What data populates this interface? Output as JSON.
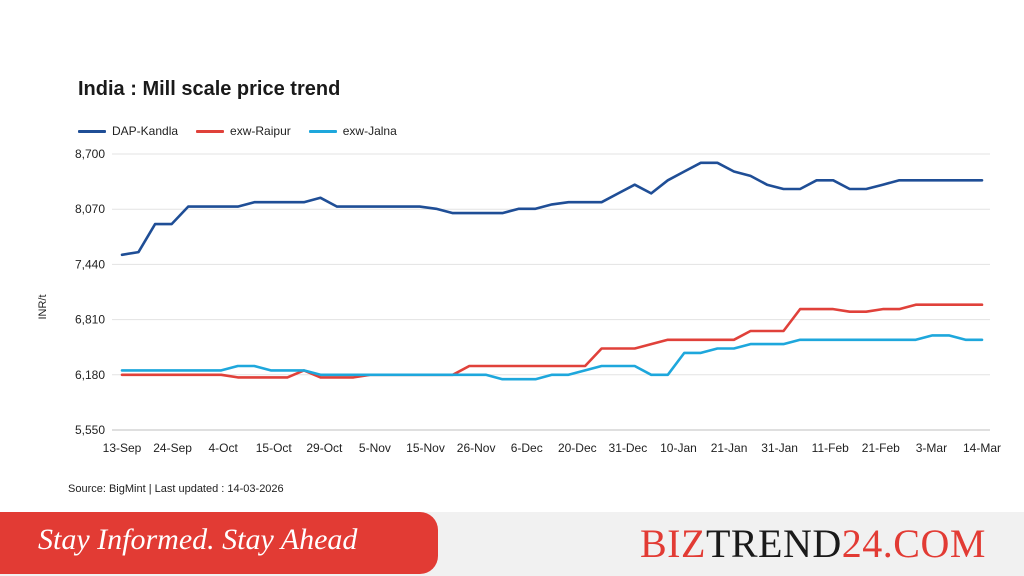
{
  "chart_data": {
    "type": "line",
    "title": "India : Mill scale price trend",
    "ylabel": "INR/t",
    "xlabel": "",
    "ylim": [
      5550,
      8700
    ],
    "yticks": [
      5550,
      6180,
      6810,
      7440,
      8070,
      8700
    ],
    "ytick_labels": [
      "5,550",
      "6,180",
      "6,810",
      "7,440",
      "8,070",
      "8,700"
    ],
    "xtick_labels": [
      "13-Sep",
      "24-Sep",
      "4-Oct",
      "15-Oct",
      "29-Oct",
      "5-Nov",
      "15-Nov",
      "26-Nov",
      "6-Dec",
      "20-Dec",
      "31-Dec",
      "10-Jan",
      "21-Jan",
      "31-Jan",
      "11-Feb",
      "21-Feb",
      "3-Mar",
      "14-Mar"
    ],
    "grid": "horizontal",
    "legend_position": "top-left",
    "series": [
      {
        "name": "DAP-Kandla",
        "color": "#1f4e96",
        "values": [
          7550,
          7580,
          7900,
          7900,
          8100,
          8100,
          8100,
          8100,
          8150,
          8150,
          8150,
          8150,
          8200,
          8100,
          8100,
          8100,
          8100,
          8100,
          8100,
          8075,
          8025,
          8025,
          8025,
          8025,
          8075,
          8075,
          8125,
          8150,
          8150,
          8150,
          8250,
          8350,
          8250,
          8400,
          8500,
          8600,
          8600,
          8500,
          8450,
          8350,
          8300,
          8300,
          8400,
          8400,
          8300,
          8300,
          8350,
          8400,
          8400,
          8400,
          8400,
          8400,
          8400
        ]
      },
      {
        "name": "exw-Raipur",
        "color": "#e0413a",
        "values": [
          6180,
          6180,
          6180,
          6180,
          6180,
          6180,
          6180,
          6150,
          6150,
          6150,
          6150,
          6230,
          6150,
          6150,
          6150,
          6180,
          6180,
          6180,
          6180,
          6180,
          6180,
          6280,
          6280,
          6280,
          6280,
          6280,
          6280,
          6280,
          6280,
          6480,
          6480,
          6480,
          6530,
          6580,
          6580,
          6580,
          6580,
          6580,
          6680,
          6680,
          6680,
          6930,
          6930,
          6930,
          6900,
          6900,
          6930,
          6930,
          6980,
          6980,
          6980,
          6980,
          6980
        ]
      },
      {
        "name": "exw-Jalna",
        "color": "#1ea7dc",
        "values": [
          6230,
          6230,
          6230,
          6230,
          6230,
          6230,
          6230,
          6280,
          6280,
          6230,
          6230,
          6230,
          6180,
          6180,
          6180,
          6180,
          6180,
          6180,
          6180,
          6180,
          6180,
          6180,
          6180,
          6130,
          6130,
          6130,
          6180,
          6180,
          6230,
          6280,
          6280,
          6280,
          6180,
          6180,
          6430,
          6430,
          6480,
          6480,
          6530,
          6530,
          6530,
          6580,
          6580,
          6580,
          6580,
          6580,
          6580,
          6580,
          6580,
          6630,
          6630,
          6580,
          6580
        ]
      }
    ]
  },
  "source_text": "Source: BigMint | Last updated : 14-03-2026",
  "footer": {
    "slogan": "Stay Informed. Stay Ahead",
    "brand_part1": "BIZ",
    "brand_part2": "TREND",
    "brand_part3": "24.COM"
  },
  "colors": {
    "footer_red": "#e23b34",
    "footer_bg": "#f1f1f1"
  }
}
